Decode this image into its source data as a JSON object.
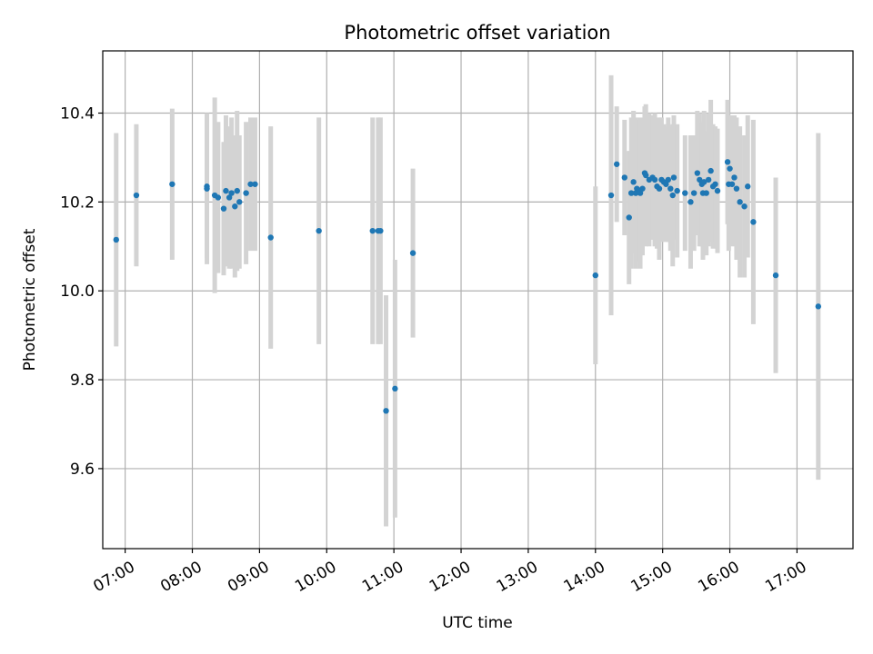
{
  "chart_data": {
    "type": "scatter",
    "title": "Photometric offset variation",
    "xlabel": "UTC time",
    "ylabel": "Photometric offset",
    "grid": true,
    "xlim": [
      "06:40",
      "17:50"
    ],
    "ylim": [
      9.42,
      10.54
    ],
    "xticks": [
      "07:00",
      "08:00",
      "09:00",
      "10:00",
      "11:00",
      "12:00",
      "13:00",
      "14:00",
      "15:00",
      "16:00",
      "17:00"
    ],
    "yticks": [
      "9.6",
      "9.8",
      "10.0",
      "10.2",
      "10.4"
    ],
    "colors": {
      "point": "#1f77b4",
      "errorbar": "#d3d3d3",
      "grid": "#b0b0b0"
    },
    "series": [
      {
        "x": [
          "06:52",
          "07:10",
          "07:42",
          "08:13",
          "08:13",
          "08:20",
          "08:23",
          "08:28",
          "08:30",
          "08:33",
          "08:35",
          "08:38",
          "08:40",
          "08:42",
          "08:48",
          "08:52",
          "08:56",
          "09:10",
          "09:53",
          "10:41",
          "10:46",
          "10:48",
          "10:53",
          "11:01",
          "11:17",
          "14:00",
          "14:14",
          "14:19",
          "14:26",
          "14:30",
          "14:32",
          "14:34",
          "14:36",
          "14:37",
          "14:39",
          "14:40",
          "14:42",
          "14:44",
          "14:45",
          "14:48",
          "14:51",
          "14:53",
          "14:55",
          "14:57",
          "14:59",
          "15:01",
          "15:03",
          "15:05",
          "15:07",
          "15:09",
          "15:10",
          "15:13",
          "15:20",
          "15:25",
          "15:28",
          "15:31",
          "15:33",
          "15:35",
          "15:36",
          "15:37",
          "15:39",
          "15:41",
          "15:43",
          "15:45",
          "15:47",
          "15:49",
          "15:58",
          "15:59",
          "16:00",
          "16:02",
          "16:04",
          "16:06",
          "16:09",
          "16:13",
          "16:16",
          "16:21",
          "16:41",
          "17:19"
        ],
        "y": [
          10.115,
          10.215,
          10.24,
          10.235,
          10.23,
          10.215,
          10.21,
          10.185,
          10.225,
          10.21,
          10.22,
          10.19,
          10.225,
          10.2,
          10.22,
          10.24,
          10.24,
          10.12,
          10.135,
          10.135,
          10.135,
          10.135,
          9.73,
          9.78,
          10.085,
          10.035,
          10.215,
          10.285,
          10.255,
          10.165,
          10.22,
          10.245,
          10.22,
          10.23,
          10.225,
          10.22,
          10.23,
          10.265,
          10.26,
          10.25,
          10.255,
          10.25,
          10.235,
          10.23,
          10.25,
          10.245,
          10.24,
          10.25,
          10.23,
          10.215,
          10.255,
          10.225,
          10.22,
          10.2,
          10.22,
          10.265,
          10.25,
          10.24,
          10.22,
          10.245,
          10.22,
          10.25,
          10.27,
          10.235,
          10.24,
          10.225,
          10.29,
          10.24,
          10.275,
          10.24,
          10.255,
          10.23,
          10.2,
          10.19,
          10.235,
          10.155,
          10.035,
          9.965
        ],
        "err": [
          0.24,
          0.16,
          0.17,
          0.16,
          0.17,
          0.22,
          0.17,
          0.15,
          0.17,
          0.16,
          0.17,
          0.16,
          0.18,
          0.15,
          0.16,
          0.15,
          0.15,
          0.25,
          0.255,
          0.255,
          0.255,
          0.255,
          0.26,
          0.29,
          0.19,
          0.2,
          0.27,
          0.13,
          0.13,
          0.15,
          0.17,
          0.16,
          0.17,
          0.15,
          0.16,
          0.17,
          0.15,
          0.15,
          0.16,
          0.15,
          0.14,
          0.15,
          0.14,
          0.16,
          0.14,
          0.13,
          0.13,
          0.14,
          0.14,
          0.16,
          0.14,
          0.15,
          0.13,
          0.15,
          0.13,
          0.14,
          0.15,
          0.14,
          0.15,
          0.16,
          0.14,
          0.15,
          0.16,
          0.14,
          0.13,
          0.14,
          0.14,
          0.15,
          0.12,
          0.14,
          0.14,
          0.16,
          0.17,
          0.16,
          0.16,
          0.23,
          0.22,
          0.39
        ]
      }
    ]
  }
}
